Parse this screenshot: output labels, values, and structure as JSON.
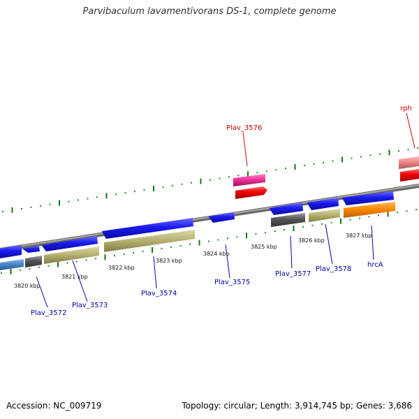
{
  "title": "Parvibaculum lavamentivorans DS-1, complete genome",
  "footer": {
    "accession": "Accession: NC_009719",
    "summary": "Topology: circular; Length: 3,914,745 bp; Genes: 3,686"
  },
  "colors": {
    "backbone": "#888888",
    "backbone_edge": "#666666",
    "tick_dot": "#228822",
    "tick_major": "#117711",
    "forward_gene": "#1a1aee",
    "generic_gene": "#ee0000",
    "pink_gene": "#ee3399",
    "salmon_gene": "#ee8888",
    "grey_gene": "#555555",
    "khaki_gene": "#b8b474",
    "orange_gene": "#ff8800",
    "steel_gene": "#4a86c8",
    "label_blue": "#0000aa",
    "label_red": "#cc0000"
  },
  "scale": {
    "unit": "kbp",
    "ticks": [
      "3820 kbp",
      "3821 kbp",
      "3822 kbp",
      "3823 kbp",
      "3824 kbp",
      "3825 kbp",
      "3826 kbp",
      "3827 kbp"
    ]
  },
  "genes": [
    {
      "id": "Plav_3572",
      "label": "Plav_3572",
      "strand": "reverse",
      "label_color": "blue"
    },
    {
      "id": "Plav_3573",
      "label": "Plav_3573",
      "strand": "reverse",
      "label_color": "blue"
    },
    {
      "id": "Plav_3574",
      "label": "Plav_3574",
      "strand": "reverse",
      "label_color": "blue"
    },
    {
      "id": "Plav_3575",
      "label": "Plav_3575",
      "strand": "reverse",
      "label_color": "blue"
    },
    {
      "id": "Plav_3576",
      "label": "Plav_3576",
      "strand": "forward",
      "label_color": "red"
    },
    {
      "id": "Plav_3577",
      "label": "Plav_3577",
      "strand": "reverse",
      "label_color": "blue"
    },
    {
      "id": "Plav_3578",
      "label": "Plav_3578",
      "strand": "reverse",
      "label_color": "blue"
    },
    {
      "id": "hrcA",
      "label": "hrcA",
      "strand": "reverse",
      "label_color": "blue"
    },
    {
      "id": "rph",
      "label": "rph",
      "strand": "forward",
      "label_color": "red"
    }
  ]
}
